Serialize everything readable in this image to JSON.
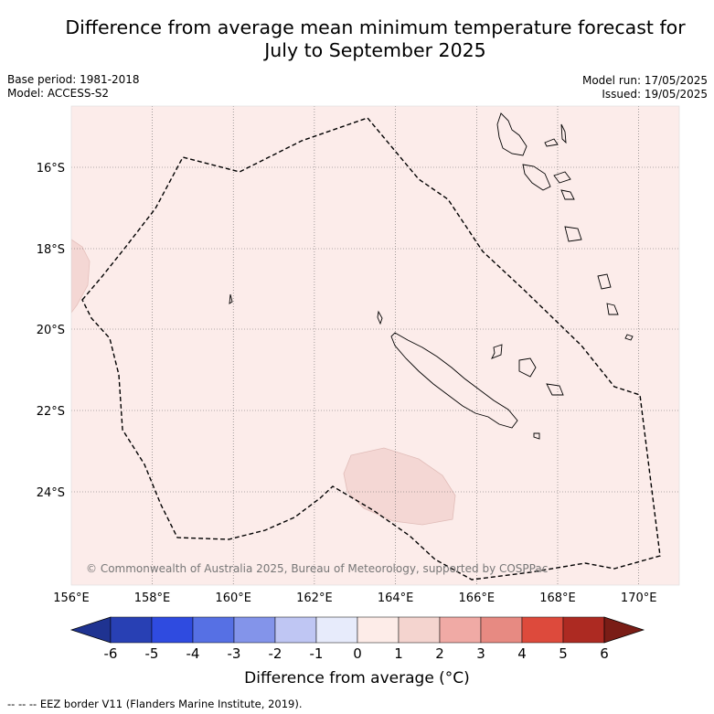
{
  "title": {
    "line1": "Difference from average mean minimum temperature forecast for",
    "line2": "July to September 2025"
  },
  "meta": {
    "base_period": "Base period: 1981-2018",
    "model": "Model: ACCESS-S2",
    "model_run": "Model run: 17/05/2025",
    "issued": "Issued: 19/05/2025"
  },
  "map": {
    "longitude_labels": [
      "156°E",
      "158°E",
      "160°E",
      "162°E",
      "164°E",
      "166°E",
      "168°E",
      "170°E"
    ],
    "latitude_labels": [
      "16°S",
      "18°S",
      "20°S",
      "22°S",
      "24°S"
    ],
    "background_color": "#fcecea",
    "anomaly_patch_color": "#f4d7d4",
    "copyright": "© Commonwealth of Australia 2025, Bureau of Meteorology, supported by COSPPac"
  },
  "colorbar": {
    "ticks": [
      "-6",
      "-5",
      "-4",
      "-3",
      "-2",
      "-1",
      "0",
      "1",
      "2",
      "3",
      "4",
      "5",
      "6"
    ],
    "colors": [
      "#1f3391",
      "#2840b4",
      "#2f4be0",
      "#5670e4",
      "#8394ea",
      "#bfc6f3",
      "#e7ebfb",
      "#fdece8",
      "#f4d4cf",
      "#f0aaa5",
      "#e78a82",
      "#dd4a3c",
      "#ad2a22",
      "#7a1d16"
    ],
    "label": "Difference from average (°C)"
  },
  "footnote": "--  --  -- EEZ border V11 (Flanders Marine Institute, 2019)."
}
